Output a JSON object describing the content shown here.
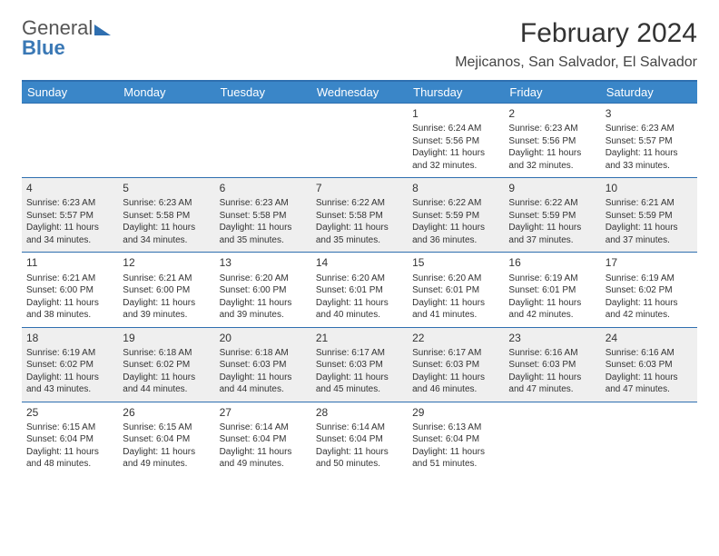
{
  "brand": {
    "line1": "General",
    "line2": "Blue"
  },
  "title": "February 2024",
  "location": "Mejicanos, San Salvador, El Salvador",
  "colors": {
    "header_bg": "#3a86c8",
    "border": "#2f6fb0",
    "alt_row": "#efefef",
    "text": "#333333"
  },
  "day_headers": [
    "Sunday",
    "Monday",
    "Tuesday",
    "Wednesday",
    "Thursday",
    "Friday",
    "Saturday"
  ],
  "weeks": [
    [
      null,
      null,
      null,
      null,
      {
        "n": "1",
        "sr": "Sunrise: 6:24 AM",
        "ss": "Sunset: 5:56 PM",
        "d1": "Daylight: 11 hours",
        "d2": "and 32 minutes."
      },
      {
        "n": "2",
        "sr": "Sunrise: 6:23 AM",
        "ss": "Sunset: 5:56 PM",
        "d1": "Daylight: 11 hours",
        "d2": "and 32 minutes."
      },
      {
        "n": "3",
        "sr": "Sunrise: 6:23 AM",
        "ss": "Sunset: 5:57 PM",
        "d1": "Daylight: 11 hours",
        "d2": "and 33 minutes."
      }
    ],
    [
      {
        "n": "4",
        "sr": "Sunrise: 6:23 AM",
        "ss": "Sunset: 5:57 PM",
        "d1": "Daylight: 11 hours",
        "d2": "and 34 minutes."
      },
      {
        "n": "5",
        "sr": "Sunrise: 6:23 AM",
        "ss": "Sunset: 5:58 PM",
        "d1": "Daylight: 11 hours",
        "d2": "and 34 minutes."
      },
      {
        "n": "6",
        "sr": "Sunrise: 6:23 AM",
        "ss": "Sunset: 5:58 PM",
        "d1": "Daylight: 11 hours",
        "d2": "and 35 minutes."
      },
      {
        "n": "7",
        "sr": "Sunrise: 6:22 AM",
        "ss": "Sunset: 5:58 PM",
        "d1": "Daylight: 11 hours",
        "d2": "and 35 minutes."
      },
      {
        "n": "8",
        "sr": "Sunrise: 6:22 AM",
        "ss": "Sunset: 5:59 PM",
        "d1": "Daylight: 11 hours",
        "d2": "and 36 minutes."
      },
      {
        "n": "9",
        "sr": "Sunrise: 6:22 AM",
        "ss": "Sunset: 5:59 PM",
        "d1": "Daylight: 11 hours",
        "d2": "and 37 minutes."
      },
      {
        "n": "10",
        "sr": "Sunrise: 6:21 AM",
        "ss": "Sunset: 5:59 PM",
        "d1": "Daylight: 11 hours",
        "d2": "and 37 minutes."
      }
    ],
    [
      {
        "n": "11",
        "sr": "Sunrise: 6:21 AM",
        "ss": "Sunset: 6:00 PM",
        "d1": "Daylight: 11 hours",
        "d2": "and 38 minutes."
      },
      {
        "n": "12",
        "sr": "Sunrise: 6:21 AM",
        "ss": "Sunset: 6:00 PM",
        "d1": "Daylight: 11 hours",
        "d2": "and 39 minutes."
      },
      {
        "n": "13",
        "sr": "Sunrise: 6:20 AM",
        "ss": "Sunset: 6:00 PM",
        "d1": "Daylight: 11 hours",
        "d2": "and 39 minutes."
      },
      {
        "n": "14",
        "sr": "Sunrise: 6:20 AM",
        "ss": "Sunset: 6:01 PM",
        "d1": "Daylight: 11 hours",
        "d2": "and 40 minutes."
      },
      {
        "n": "15",
        "sr": "Sunrise: 6:20 AM",
        "ss": "Sunset: 6:01 PM",
        "d1": "Daylight: 11 hours",
        "d2": "and 41 minutes."
      },
      {
        "n": "16",
        "sr": "Sunrise: 6:19 AM",
        "ss": "Sunset: 6:01 PM",
        "d1": "Daylight: 11 hours",
        "d2": "and 42 minutes."
      },
      {
        "n": "17",
        "sr": "Sunrise: 6:19 AM",
        "ss": "Sunset: 6:02 PM",
        "d1": "Daylight: 11 hours",
        "d2": "and 42 minutes."
      }
    ],
    [
      {
        "n": "18",
        "sr": "Sunrise: 6:19 AM",
        "ss": "Sunset: 6:02 PM",
        "d1": "Daylight: 11 hours",
        "d2": "and 43 minutes."
      },
      {
        "n": "19",
        "sr": "Sunrise: 6:18 AM",
        "ss": "Sunset: 6:02 PM",
        "d1": "Daylight: 11 hours",
        "d2": "and 44 minutes."
      },
      {
        "n": "20",
        "sr": "Sunrise: 6:18 AM",
        "ss": "Sunset: 6:03 PM",
        "d1": "Daylight: 11 hours",
        "d2": "and 44 minutes."
      },
      {
        "n": "21",
        "sr": "Sunrise: 6:17 AM",
        "ss": "Sunset: 6:03 PM",
        "d1": "Daylight: 11 hours",
        "d2": "and 45 minutes."
      },
      {
        "n": "22",
        "sr": "Sunrise: 6:17 AM",
        "ss": "Sunset: 6:03 PM",
        "d1": "Daylight: 11 hours",
        "d2": "and 46 minutes."
      },
      {
        "n": "23",
        "sr": "Sunrise: 6:16 AM",
        "ss": "Sunset: 6:03 PM",
        "d1": "Daylight: 11 hours",
        "d2": "and 47 minutes."
      },
      {
        "n": "24",
        "sr": "Sunrise: 6:16 AM",
        "ss": "Sunset: 6:03 PM",
        "d1": "Daylight: 11 hours",
        "d2": "and 47 minutes."
      }
    ],
    [
      {
        "n": "25",
        "sr": "Sunrise: 6:15 AM",
        "ss": "Sunset: 6:04 PM",
        "d1": "Daylight: 11 hours",
        "d2": "and 48 minutes."
      },
      {
        "n": "26",
        "sr": "Sunrise: 6:15 AM",
        "ss": "Sunset: 6:04 PM",
        "d1": "Daylight: 11 hours",
        "d2": "and 49 minutes."
      },
      {
        "n": "27",
        "sr": "Sunrise: 6:14 AM",
        "ss": "Sunset: 6:04 PM",
        "d1": "Daylight: 11 hours",
        "d2": "and 49 minutes."
      },
      {
        "n": "28",
        "sr": "Sunrise: 6:14 AM",
        "ss": "Sunset: 6:04 PM",
        "d1": "Daylight: 11 hours",
        "d2": "and 50 minutes."
      },
      {
        "n": "29",
        "sr": "Sunrise: 6:13 AM",
        "ss": "Sunset: 6:04 PM",
        "d1": "Daylight: 11 hours",
        "d2": "and 51 minutes."
      },
      null,
      null
    ]
  ]
}
